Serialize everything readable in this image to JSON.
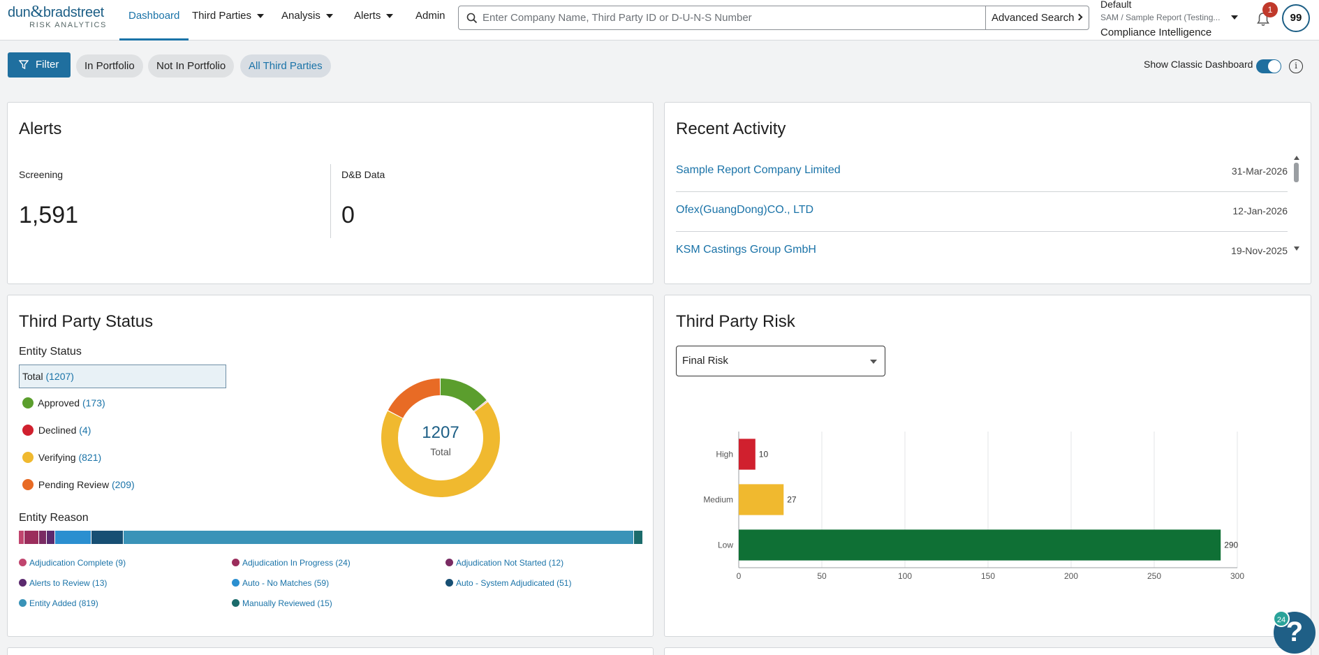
{
  "brand": {
    "name_left": "dun",
    "amp": "&",
    "name_right": "bradstreet",
    "sub": "RISK ANALYTICS",
    "color": "#1d5f86"
  },
  "nav": {
    "dashboard": "Dashboard",
    "third_parties": "Third Parties",
    "analysis": "Analysis",
    "alerts": "Alerts",
    "admin": "Admin"
  },
  "search": {
    "placeholder": "Enter Company Name, Third Party ID or D-U-N-S Number",
    "advanced": "Advanced Search"
  },
  "context": {
    "line1": "Default",
    "line2": "SAM / Sample Report (Testing...",
    "line3": "Compliance Intelligence"
  },
  "notifications": {
    "count": "1"
  },
  "user": {
    "initials": "99"
  },
  "filter": {
    "label": "Filter",
    "pills": [
      "In Portfolio",
      "Not In Portfolio",
      "All Third Parties"
    ],
    "selected": "All Third Parties"
  },
  "classic_toggle": {
    "label": "Show Classic Dashboard",
    "on": true
  },
  "alerts_card": {
    "title": "Alerts",
    "screening_label": "Screening",
    "screening_value": "1,591",
    "dnb_label": "D&B Data",
    "dnb_value": "0"
  },
  "recent_activity": {
    "title": "Recent Activity",
    "items": [
      {
        "name": "Sample Report Company Limited",
        "date": "31-Mar-2026"
      },
      {
        "name": "Ofex(GuangDong)CO., LTD",
        "date": "12-Jan-2026"
      },
      {
        "name": "KSM Castings Group GmbH",
        "date": "19-Nov-2025"
      }
    ]
  },
  "status_card": {
    "title": "Third Party Status",
    "entity_status_label": "Entity Status",
    "total_label": "Total",
    "total_count": "(1207)",
    "statuses": [
      {
        "label": "Approved",
        "count": "(173)",
        "value": 173,
        "color": "#5b9e2d"
      },
      {
        "label": "Declined",
        "count": "(4)",
        "value": 4,
        "color": "#d0202e"
      },
      {
        "label": "Verifying",
        "count": "(821)",
        "value": 821,
        "color": "#f0b92f"
      },
      {
        "label": "Pending Review",
        "count": "(209)",
        "value": 209,
        "color": "#e86b25"
      }
    ],
    "donut_total": "1207",
    "donut_label": "Total",
    "entity_reason_label": "Entity Reason",
    "reasons": [
      {
        "label": "Adjudication Complete",
        "count": "(9)",
        "value": 9,
        "color": "#c0456e"
      },
      {
        "label": "Adjudication In Progress",
        "count": "(24)",
        "value": 24,
        "color": "#9b2d5c"
      },
      {
        "label": "Adjudication Not Started",
        "count": "(12)",
        "value": 12,
        "color": "#7a2b63"
      },
      {
        "label": "Alerts to Review",
        "count": "(13)",
        "value": 13,
        "color": "#5b2a6e"
      },
      {
        "label": "Auto - No Matches",
        "count": "(59)",
        "value": 59,
        "color": "#2b8fd0"
      },
      {
        "label": "Auto - System Adjudicated",
        "count": "(51)",
        "value": 51,
        "color": "#174f73"
      },
      {
        "label": "Entity Added",
        "count": "(819)",
        "value": 819,
        "color": "#3a93b8"
      },
      {
        "label": "Manually Reviewed",
        "count": "(15)",
        "value": 15,
        "color": "#1b6b6b"
      }
    ]
  },
  "risk_card": {
    "title": "Third Party Risk",
    "select_value": "Final Risk"
  },
  "chart_data": {
    "type": "bar",
    "orientation": "horizontal",
    "categories": [
      "High",
      "Medium",
      "Low"
    ],
    "values": [
      10,
      27,
      290
    ],
    "colors": [
      "#d0202e",
      "#f0b92f",
      "#0f7035"
    ],
    "xlim": [
      0,
      300
    ],
    "xticks": [
      0,
      50,
      100,
      150,
      200,
      250,
      300
    ],
    "grid": true
  },
  "help": {
    "badge": "24",
    "glyph": "?"
  }
}
